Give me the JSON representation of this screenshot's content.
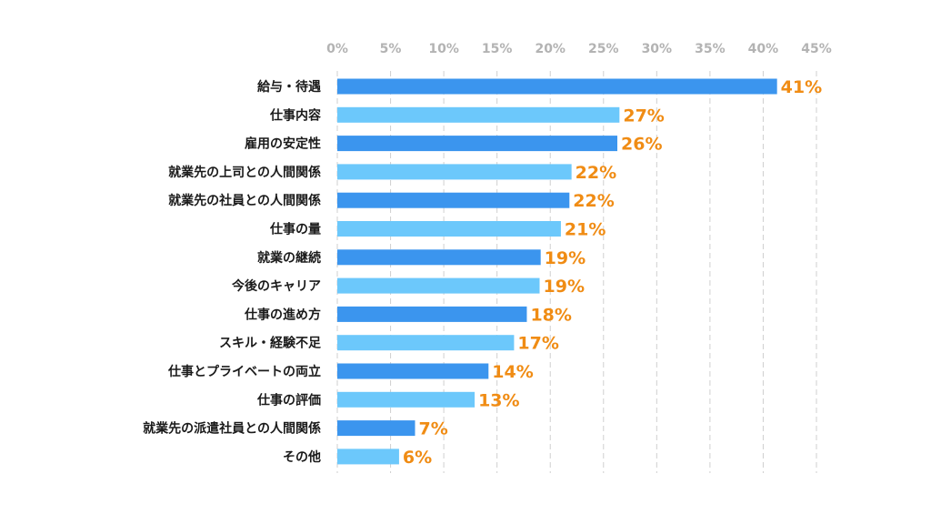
{
  "chart_data": {
    "type": "bar",
    "orientation": "horizontal",
    "title": "",
    "xlabel": "",
    "ylabel": "",
    "xlim": [
      0,
      45
    ],
    "ticks": [
      0,
      5,
      10,
      15,
      20,
      25,
      30,
      35,
      40,
      45
    ],
    "tick_labels": [
      "0%",
      "5%",
      "10%",
      "15%",
      "20%",
      "25%",
      "30%",
      "35%",
      "40%",
      "45%"
    ],
    "grid": true,
    "categories": [
      "給与・待遇",
      "仕事内容",
      "雇用の安定性",
      "就業先の上司との人間関係",
      "就業先の社員との人間関係",
      "仕事の量",
      "就業の継続",
      "今後のキャリア",
      "仕事の進め方",
      "スキル・経験不足",
      "仕事とプライベートの両立",
      "仕事の評価",
      "就業先の派遣社員との人間関係",
      "その他"
    ],
    "values": [
      41.3,
      26.5,
      26.3,
      22.0,
      21.8,
      21.0,
      19.1,
      19.0,
      17.8,
      16.6,
      14.2,
      12.9,
      7.3,
      5.8
    ],
    "data_labels": [
      "41%",
      "27%",
      "26%",
      "22%",
      "22%",
      "21%",
      "19%",
      "19%",
      "18%",
      "17%",
      "14%",
      "13%",
      "7%",
      "6%"
    ]
  },
  "colors": {
    "bar_dark": "#3b95ee",
    "bar_light": "#6cc8fb",
    "data_label": "#f08c14",
    "tick_label": "#b3b3b3",
    "category_label": "#1a1a1a",
    "gridline": "#cfcfcf"
  }
}
